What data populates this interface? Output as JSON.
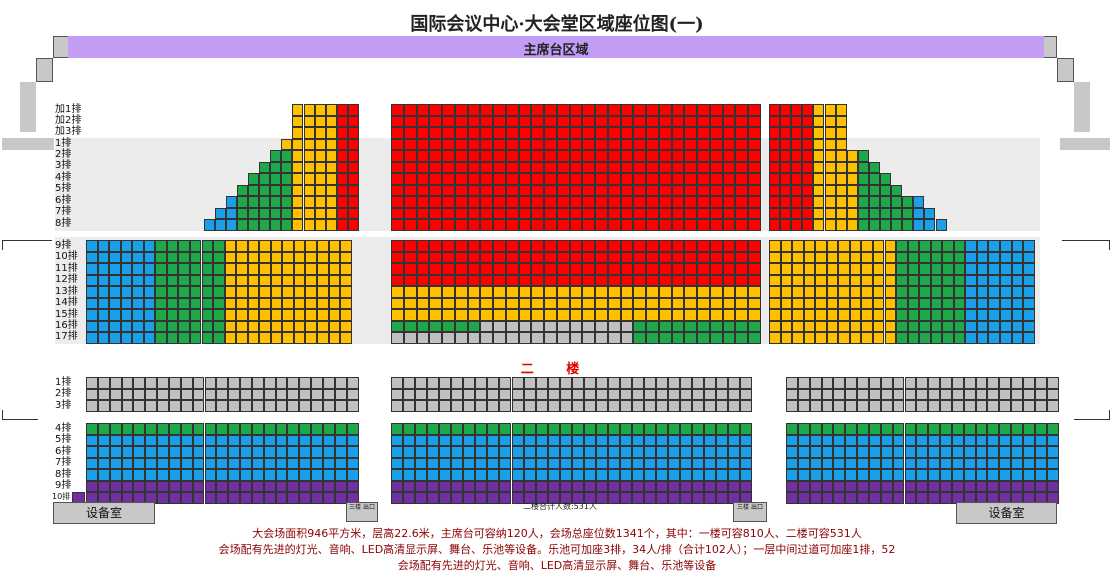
{
  "title": "国际会议中心·大会堂区域座位图(一)",
  "stage_label": "主席台区域",
  "floor1_row_labels": [
    "加1排",
    "加2排",
    "加3排",
    "1排",
    "2排",
    "3排",
    "4排",
    "5排",
    "6排",
    "7排",
    "8排",
    "9排",
    "10排",
    "11排",
    "12排",
    "13排",
    "14排",
    "15排",
    "16排",
    "17排"
  ],
  "floor2_label": "二 楼",
  "floor2_row_labels": [
    "1排",
    "2排",
    "3排",
    "4排",
    "5排",
    "6排",
    "7排",
    "8排",
    "9排",
    "10排"
  ],
  "floor2_count": "二楼合计人数:531人",
  "equipment_left": "设备室",
  "equipment_right": "设备室",
  "small_box_left": "三楼 出口",
  "small_box_right": "三楼 出口",
  "notes": [
    "大会场面积946平方米，层高22.6米，主席台可容纳120人，会场总座位数1341个，其中：一楼可容810人、二楼可容531人",
    "会场配有先进的灯光、音响、LED高清显示屏、舞台、乐池等设备。乐池可加座3排，34人/排（合计102人）；一层中间过道可加座1排，52",
    "会场配有先进的灯光、音响、LED高清显示屏、舞台、乐池等设备"
  ],
  "colors": {
    "red": "#ff0000",
    "orange": "#ffc000",
    "green": "#1fa84a",
    "blue": "#1aa0e8",
    "gray": "#c0c0c0",
    "purple": "#7030a0",
    "stage": "#c39df5"
  }
}
